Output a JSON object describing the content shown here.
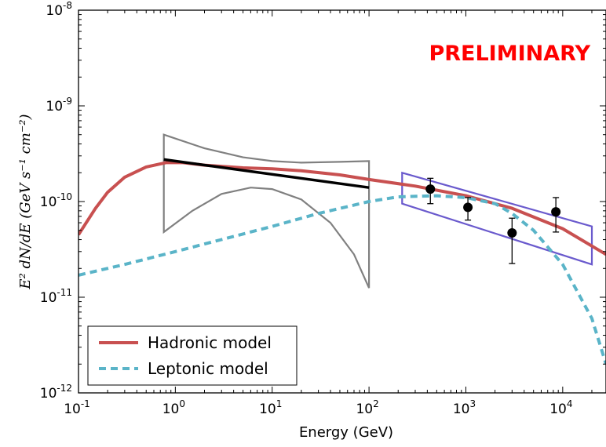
{
  "chart_data": {
    "type": "line",
    "title": "",
    "xlabel": "Energy (GeV)",
    "ylabel": "E² dN/dE (GeV s⁻¹ cm⁻²)",
    "xscale": "log",
    "yscale": "log",
    "xlim": [
      0.1,
      28000
    ],
    "ylim": [
      1e-12,
      1e-08
    ],
    "x_ticks": [
      {
        "base": "10",
        "exp": "-1"
      },
      {
        "base": "10",
        "exp": "0"
      },
      {
        "base": "10",
        "exp": "1"
      },
      {
        "base": "10",
        "exp": "2"
      },
      {
        "base": "10",
        "exp": "3"
      },
      {
        "base": "10",
        "exp": "4"
      }
    ],
    "y_ticks": [
      {
        "base": "10",
        "exp": "-12"
      },
      {
        "base": "10",
        "exp": "-11"
      },
      {
        "base": "10",
        "exp": "-10"
      },
      {
        "base": "10",
        "exp": "-9"
      },
      {
        "base": "10",
        "exp": "-8"
      }
    ],
    "annotation": "PRELIMINARY",
    "legend": {
      "position": "bottom-left",
      "entries": [
        {
          "label": "Hadronic model",
          "color": "#c85050",
          "style": "solid"
        },
        {
          "label": "Leptonic model",
          "color": "#5ab4c8",
          "style": "dashed"
        }
      ]
    },
    "series": [
      {
        "name": "Hadronic model",
        "color": "#c85050",
        "style": "solid",
        "points": [
          [
            0.1,
            4.5e-11
          ],
          [
            0.15,
            8.5e-11
          ],
          [
            0.2,
            1.25e-10
          ],
          [
            0.3,
            1.8e-10
          ],
          [
            0.5,
            2.3e-10
          ],
          [
            0.8,
            2.55e-10
          ],
          [
            1.2,
            2.55e-10
          ],
          [
            2,
            2.4e-10
          ],
          [
            5,
            2.25e-10
          ],
          [
            10,
            2.2e-10
          ],
          [
            20,
            2.1e-10
          ],
          [
            50,
            1.9e-10
          ],
          [
            100,
            1.7e-10
          ],
          [
            300,
            1.45e-10
          ],
          [
            1000,
            1.15e-10
          ],
          [
            3000,
            8.5e-11
          ],
          [
            10000,
            5.2e-11
          ],
          [
            28000,
            2.8e-11
          ]
        ]
      },
      {
        "name": "Leptonic model",
        "color": "#5ab4c8",
        "style": "dashed",
        "points": [
          [
            0.1,
            1.7e-11
          ],
          [
            0.3,
            2.2e-11
          ],
          [
            1,
            3e-11
          ],
          [
            3,
            4e-11
          ],
          [
            10,
            5.5e-11
          ],
          [
            30,
            7.5e-11
          ],
          [
            100,
            1e-10
          ],
          [
            200,
            1.12e-10
          ],
          [
            500,
            1.15e-10
          ],
          [
            1000,
            1.1e-10
          ],
          [
            2000,
            9.5e-11
          ],
          [
            3000,
            7.5e-11
          ],
          [
            5000,
            5e-11
          ],
          [
            10000,
            2.2e-11
          ],
          [
            20000,
            6e-12
          ],
          [
            28000,
            2e-12
          ]
        ]
      },
      {
        "name": "",
        "color": "#000000",
        "style": "solid",
        "points": [
          [
            0.76,
            2.75e-10
          ],
          [
            100,
            1.4e-10
          ]
        ]
      }
    ],
    "bowties": [
      {
        "color": "#808080",
        "x_range": [
          0.76,
          100
        ],
        "upper": [
          [
            0.76,
            5e-10
          ],
          [
            2,
            3.6e-10
          ],
          [
            5,
            2.9e-10
          ],
          [
            10,
            2.65e-10
          ],
          [
            20,
            2.55e-10
          ],
          [
            50,
            2.6e-10
          ],
          [
            100,
            2.65e-10
          ]
        ],
        "lower": [
          [
            0.76,
            4.8e-11
          ],
          [
            1.5,
            8e-11
          ],
          [
            3,
            1.2e-10
          ],
          [
            6,
            1.4e-10
          ],
          [
            10,
            1.35e-10
          ],
          [
            20,
            1.05e-10
          ],
          [
            40,
            6e-11
          ],
          [
            70,
            2.8e-11
          ],
          [
            100,
            1.25e-11
          ]
        ]
      },
      {
        "color": "#6a5acd",
        "x_range": [
          220,
          20000
        ],
        "upper": [
          [
            220,
            2e-10
          ],
          [
            20000,
            5.5e-11
          ]
        ],
        "lower": [
          [
            220,
            9.5e-11
          ],
          [
            20000,
            2.2e-11
          ]
        ]
      }
    ],
    "data_points": [
      {
        "x": 430,
        "y": 1.35e-10,
        "yerr_low": 9.5e-11,
        "yerr_high": 1.75e-10
      },
      {
        "x": 1050,
        "y": 8.7e-11,
        "yerr_low": 6.4e-11,
        "yerr_high": 1.1e-10
      },
      {
        "x": 3000,
        "y": 4.7e-11,
        "yerr_low": 2.25e-11,
        "yerr_high": 6.7e-11
      },
      {
        "x": 8500,
        "y": 7.8e-11,
        "yerr_low": 4.8e-11,
        "yerr_high": 1.1e-10
      }
    ]
  }
}
